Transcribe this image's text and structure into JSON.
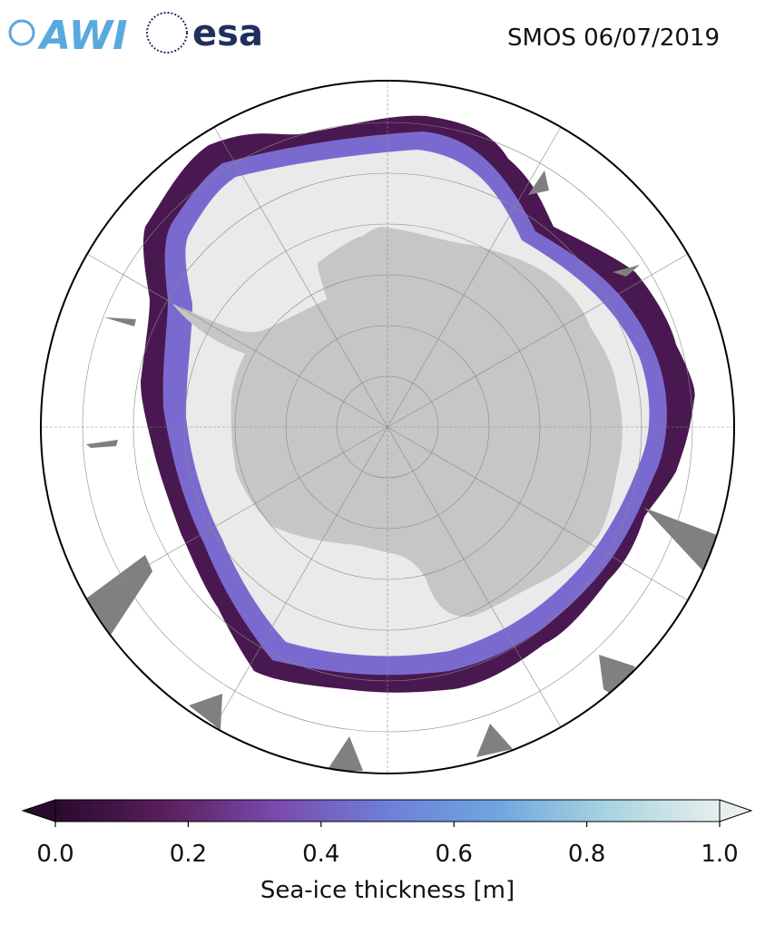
{
  "logos": {
    "awi": "AWI",
    "esa": "esa"
  },
  "title": "SMOS 06/07/2019",
  "colorbar": {
    "label": "Sea-ice thickness [m]",
    "range": [
      0,
      1
    ],
    "ticks": [
      {
        "value": 0,
        "label": "0.0"
      },
      {
        "value": 0.2,
        "label": "0.2"
      },
      {
        "value": 0.4,
        "label": "0.4"
      },
      {
        "value": 0.6,
        "label": "0.6"
      },
      {
        "value": 0.8,
        "label": "0.8"
      },
      {
        "value": 1,
        "label": "1.0"
      }
    ],
    "colors": [
      "#2a0a2e",
      "#5a1f5e",
      "#7a4aae",
      "#6e7fd8",
      "#6fa6e0",
      "#a9d4e0",
      "#e6eeee"
    ]
  }
}
